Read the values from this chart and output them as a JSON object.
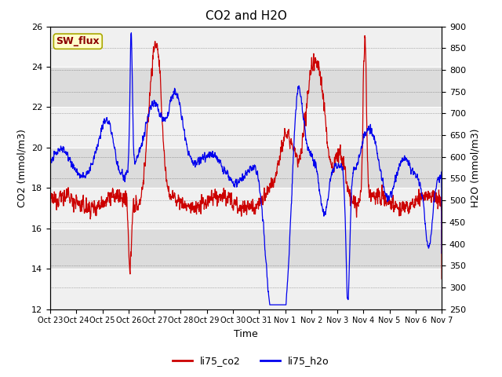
{
  "title": "CO2 and H2O",
  "xlabel": "Time",
  "ylabel_left": "CO2 (mmol/m3)",
  "ylabel_right": "H2O (mmol/m3)",
  "ylim_left": [
    12,
    26
  ],
  "ylim_right": [
    250,
    900
  ],
  "yticks_left": [
    12,
    14,
    16,
    18,
    20,
    22,
    24,
    26
  ],
  "yticks_right": [
    250,
    300,
    350,
    400,
    450,
    500,
    550,
    600,
    650,
    700,
    750,
    800,
    850,
    900
  ],
  "xtick_labels": [
    "Oct 23",
    "Oct 24",
    "Oct 25",
    "Oct 26",
    "Oct 27",
    "Oct 28",
    "Oct 29",
    "Oct 30",
    "Oct 31",
    "Nov 1",
    "Nov 2",
    "Nov 3",
    "Nov 4",
    "Nov 5",
    "Nov 6",
    "Nov 7"
  ],
  "color_co2": "#cc0000",
  "color_h2o": "#0000ee",
  "legend_label_co2": "li75_co2",
  "legend_label_h2o": "li75_h2o",
  "sw_flux_label": "SW_flux",
  "bg_color": "#dcdcdc",
  "band_color_light": "#f0f0f0",
  "line_width": 0.9,
  "title_fontsize": 11
}
